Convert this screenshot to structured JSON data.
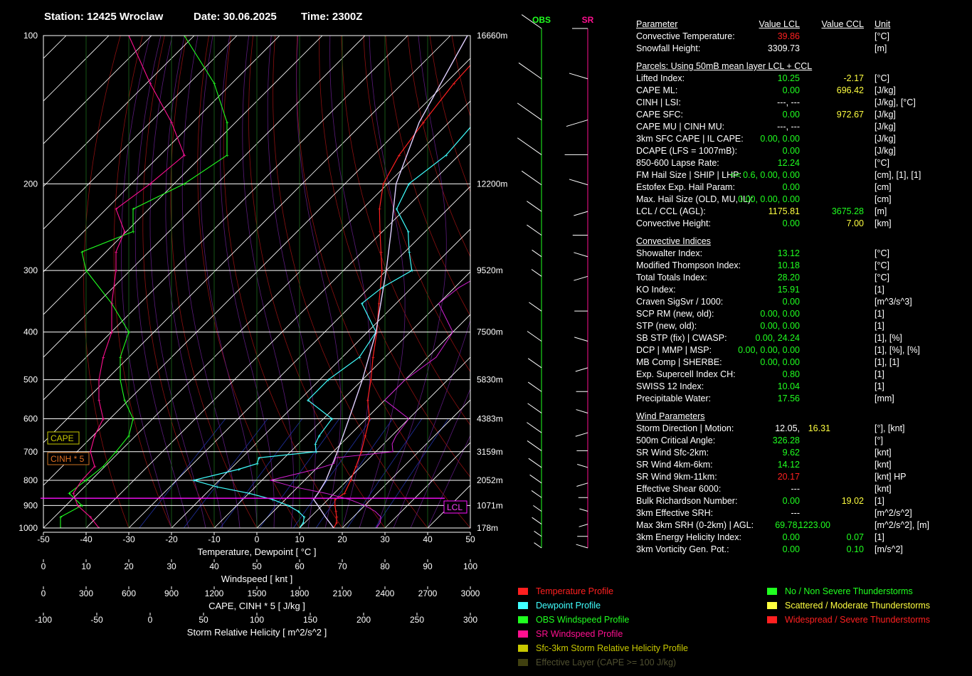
{
  "header": {
    "station": "Station: 12425 Wroclaw",
    "date": "Date: 30.06.2025",
    "time": "Time: 2300Z"
  },
  "hodo_labels": {
    "obs": "OBS",
    "sr": "SR"
  },
  "boxes": {
    "cape": "CAPE",
    "cinh": "CINH * 5",
    "lcl": "LCL"
  },
  "colors": {
    "temperature": "#ff2020",
    "dewpoint": "#40ffff",
    "obs_wind": "#20ff20",
    "sr_wind": "#ff1090",
    "srh": "#c8c800",
    "effective": "#404010",
    "green": "#20ff20",
    "yellow": "#ffff40",
    "red": "#ff2020",
    "grid": "#ffffff"
  },
  "chart_data": {
    "type": "line",
    "title": "",
    "y_scale": "log-pressure",
    "pressure_levels": [
      100,
      200,
      300,
      400,
      500,
      600,
      700,
      800,
      900,
      1000
    ],
    "height_labels": [
      "16660m",
      "12200m",
      "9520m",
      "7500m",
      "5830m",
      "4383m",
      "3159m",
      "2052m",
      "1071m",
      "178m"
    ],
    "axes": [
      {
        "label": "Temperature, Dewpoint  [ °C ]",
        "ticks": [
          "-50",
          "-40",
          "-30",
          "-20",
          "-10",
          "0",
          "10",
          "20",
          "30",
          "40",
          "50"
        ]
      },
      {
        "label": "Windspeed  [ knt ]",
        "ticks": [
          "0",
          "10",
          "20",
          "30",
          "40",
          "50",
          "60",
          "70",
          "80",
          "90",
          "100"
        ]
      },
      {
        "label": "CAPE, CINH * 5  [ J/kg ]",
        "ticks": [
          "0",
          "300",
          "600",
          "900",
          "1200",
          "1500",
          "1800",
          "2100",
          "2400",
          "2700",
          "3000"
        ]
      },
      {
        "label": "Storm Relative Helicity  [ m^2/s^2 ]",
        "ticks": [
          "-100",
          "-50",
          "0",
          "50",
          "100",
          "150",
          "200",
          "250",
          "300"
        ]
      }
    ],
    "xlim": [
      -50,
      50
    ],
    "ylim": [
      1000,
      100
    ],
    "series": [
      {
        "name": "Temperature Profile",
        "points": [
          [
            1000,
            18
          ],
          [
            975,
            17.4
          ],
          [
            950,
            16.1
          ],
          [
            925,
            14.6
          ],
          [
            900,
            13
          ],
          [
            875,
            11.6
          ],
          [
            850,
            12.4
          ],
          [
            800,
            10.8
          ],
          [
            750,
            8.8
          ],
          [
            700,
            6.6
          ],
          [
            650,
            3.8
          ],
          [
            600,
            0.8
          ],
          [
            550,
            -4
          ],
          [
            500,
            -8
          ],
          [
            450,
            -12.8
          ],
          [
            400,
            -17.8
          ],
          [
            350,
            -24
          ],
          [
            300,
            -31
          ],
          [
            275,
            -35.6
          ],
          [
            250,
            -40.6
          ],
          [
            225,
            -46
          ],
          [
            200,
            -51
          ],
          [
            175,
            -54
          ],
          [
            150,
            -56
          ],
          [
            125,
            -58
          ],
          [
            100,
            -59
          ]
        ]
      },
      {
        "name": "Dewpoint Profile",
        "points": [
          [
            1000,
            10
          ],
          [
            975,
            9.6
          ],
          [
            950,
            8.5
          ],
          [
            925,
            5.8
          ],
          [
            900,
            2
          ],
          [
            875,
            -3
          ],
          [
            850,
            -10
          ],
          [
            825,
            -19
          ],
          [
            800,
            -26
          ],
          [
            760,
            -18
          ],
          [
            740,
            -15
          ],
          [
            720,
            -16
          ],
          [
            700,
            -4
          ],
          [
            675,
            -6
          ],
          [
            650,
            -7
          ],
          [
            600,
            -8
          ],
          [
            550,
            -18
          ],
          [
            500,
            -18
          ],
          [
            450,
            -16
          ],
          [
            400,
            -18
          ],
          [
            350,
            -28
          ],
          [
            325,
            -27
          ],
          [
            300,
            -24
          ],
          [
            275,
            -29
          ],
          [
            250,
            -34
          ],
          [
            225,
            -42
          ],
          [
            200,
            -45
          ],
          [
            175,
            -43
          ],
          [
            150,
            -44
          ],
          [
            125,
            -48
          ],
          [
            100,
            -55
          ]
        ]
      },
      {
        "name": "Parcel",
        "points": [
          [
            1000,
            18
          ],
          [
            950,
            13.5
          ],
          [
            900,
            9
          ],
          [
            875,
            6.6
          ],
          [
            850,
            6.2
          ],
          [
            800,
            5
          ],
          [
            700,
            1
          ],
          [
            600,
            -4
          ],
          [
            500,
            -10
          ],
          [
            400,
            -18
          ],
          [
            300,
            -30
          ],
          [
            250,
            -38
          ],
          [
            200,
            -48
          ],
          [
            150,
            -57
          ],
          [
            100,
            -66
          ]
        ]
      }
    ],
    "obs_windspeed_knt": [
      [
        1000,
        4
      ],
      [
        950,
        4
      ],
      [
        900,
        9
      ],
      [
        850,
        6
      ],
      [
        800,
        10
      ],
      [
        750,
        14
      ],
      [
        700,
        17
      ],
      [
        650,
        20
      ],
      [
        600,
        21
      ],
      [
        550,
        19
      ],
      [
        500,
        18
      ],
      [
        450,
        18
      ],
      [
        400,
        20
      ],
      [
        350,
        16
      ],
      [
        300,
        10
      ],
      [
        275,
        9
      ],
      [
        250,
        21
      ],
      [
        225,
        21
      ],
      [
        200,
        33
      ],
      [
        175,
        43
      ],
      [
        150,
        43
      ],
      [
        125,
        40
      ],
      [
        100,
        33
      ]
    ],
    "sr_windspeed_knt": [
      [
        1000,
        13
      ],
      [
        950,
        11
      ],
      [
        900,
        8
      ],
      [
        850,
        7
      ],
      [
        800,
        9
      ],
      [
        750,
        12
      ],
      [
        700,
        11
      ],
      [
        650,
        12
      ],
      [
        600,
        14
      ],
      [
        550,
        13
      ],
      [
        500,
        13
      ],
      [
        450,
        14
      ],
      [
        400,
        16
      ],
      [
        350,
        16
      ],
      [
        300,
        17
      ],
      [
        275,
        17
      ],
      [
        250,
        19
      ],
      [
        225,
        17
      ],
      [
        200,
        25
      ],
      [
        175,
        33
      ],
      [
        150,
        30
      ],
      [
        125,
        25
      ],
      [
        100,
        20
      ]
    ],
    "cape_cinh": {
      "cape_max_jkg": 0,
      "cinh_max_jkg": 0
    }
  },
  "params": [
    {
      "label": "Parameter",
      "v1": "Value LCL",
      "v2": "Value CCL",
      "unit": "Unit",
      "kind": "header"
    },
    {
      "label": "Convective Temperature:",
      "v1": "39.86",
      "v2": "",
      "unit": "[°C]",
      "c1": "red"
    },
    {
      "label": "Snowfall Height:",
      "v1": "3309.73",
      "v2": "",
      "unit": "[m]",
      "c1": "white"
    },
    {
      "label": "Parcels: Using 50mB mean layer LCL + CCL",
      "kind": "section"
    },
    {
      "label": "Lifted Index:",
      "v1": "10.25",
      "v2": "-2.17",
      "unit": "[°C]",
      "c1": "green",
      "c2": "yellow"
    },
    {
      "label": "CAPE ML:",
      "v1": "0.00",
      "v2": "696.42",
      "unit": "[J/kg]",
      "c1": "green",
      "c2": "yellow"
    },
    {
      "label": "CINH | LSI:",
      "v1": "---,  ---",
      "v2": "",
      "unit": "[J/kg], [°C]",
      "c1": "white"
    },
    {
      "label": "CAPE SFC:",
      "v1": "0.00",
      "v2": "972.67",
      "unit": "[J/kg]",
      "c1": "green",
      "c2": "yellow"
    },
    {
      "label": "CAPE MU | CINH MU:",
      "v1": "---,  ---",
      "v2": "",
      "unit": "[J/kg]",
      "c1": "white"
    },
    {
      "label": "3km SFC CAPE | IL CAPE:",
      "v1": "0.00,  0.00",
      "v2": "",
      "unit": "[J/kg]",
      "c1": "green"
    },
    {
      "label": "DCAPE (LFS = 1007mB):",
      "v1": "0.00",
      "v2": "",
      "unit": "[J/kg]",
      "c1": "green"
    },
    {
      "label": "850-600 Lapse Rate:",
      "v1": "12.24",
      "v2": "",
      "unit": "[°C]",
      "c1": "green"
    },
    {
      "label": "FM Hail Size | SHIP | LHP:",
      "v1": "<= 0.6,  0.00,  0.00",
      "v2": "",
      "unit": "[cm], [1], [1]",
      "c1": "green"
    },
    {
      "label": "Estofex Exp. Hail Param:",
      "v1": "0.00",
      "v2": "",
      "unit": "[cm]",
      "c1": "green"
    },
    {
      "label": "Max. Hail Size (OLD, MU, IL):",
      "v1": "0.00,  0.00,  0.00",
      "v2": "",
      "unit": "[cm]",
      "c1": "green"
    },
    {
      "label": "LCL / CCL (AGL):",
      "v1": "1175.81",
      "v2": "3675.28",
      "unit": "[m]",
      "c1": "yellow",
      "c2": "green"
    },
    {
      "label": "Convective Height:",
      "v1": "0.00",
      "v2": "7.00",
      "unit": "[km]",
      "c1": "green",
      "c2": "yellow"
    },
    {
      "label": "Convective Indices",
      "kind": "section"
    },
    {
      "label": "Showalter Index:",
      "v1": "13.12",
      "v2": "",
      "unit": "[°C]",
      "c1": "green"
    },
    {
      "label": "Modified Thompson Index:",
      "v1": "10.18",
      "v2": "",
      "unit": "[°C]",
      "c1": "green"
    },
    {
      "label": "Total Totals Index:",
      "v1": "28.20",
      "v2": "",
      "unit": "[°C]",
      "c1": "green"
    },
    {
      "label": "KO Index:",
      "v1": "15.91",
      "v2": "",
      "unit": "[1]",
      "c1": "green"
    },
    {
      "label": "Craven SigSvr / 1000:",
      "v1": "0.00",
      "v2": "",
      "unit": "[m^3/s^3]",
      "c1": "green"
    },
    {
      "label": "SCP RM (new, old):",
      "v1": "0.00,  0.00",
      "v2": "",
      "unit": "[1]",
      "c1": "green"
    },
    {
      "label": "STP (new, old):",
      "v1": "0.00,  0.00",
      "v2": "",
      "unit": "[1]",
      "c1": "green"
    },
    {
      "label": "SB STP (fix) | CWASP:",
      "v1": "0.00,  24.24",
      "v2": "",
      "unit": "[1], [%]",
      "c1": "green"
    },
    {
      "label": "DCP | MMP | MSP:",
      "v1": "0.00,  0.00,  0.00",
      "v2": "",
      "unit": "[1], [%], [%]",
      "c1": "green"
    },
    {
      "label": "MB Comp | SHERBE:",
      "v1": "0.00,  0.00",
      "v2": "",
      "unit": "[1], [1]",
      "c1": "green"
    },
    {
      "label": "Exp. Supercell Index CH:",
      "v1": "0.80",
      "v2": "",
      "unit": "[1]",
      "c1": "green"
    },
    {
      "label": "SWISS 12 Index:",
      "v1": "10.04",
      "v2": "",
      "unit": "[1]",
      "c1": "green"
    },
    {
      "label": "Precipitable Water:",
      "v1": "17.56",
      "v2": "",
      "unit": "[mm]",
      "c1": "green"
    },
    {
      "label": "Wind Parameters",
      "kind": "section"
    },
    {
      "label": "Storm Direction | Motion:",
      "v1": "12.05,",
      "v1b": "16.31",
      "v2": "",
      "unit": "[°], [knt]",
      "c1": "white",
      "c1b": "yellow"
    },
    {
      "label": "500m Critical Angle:",
      "v1": "326.28",
      "v2": "",
      "unit": "[°]",
      "c1": "green"
    },
    {
      "label": "SR Wind Sfc-2km:",
      "v1": "9.62",
      "v2": "",
      "unit": "[knt]",
      "c1": "green"
    },
    {
      "label": "SR Wind 4km-6km:",
      "v1": "14.12",
      "v2": "",
      "unit": "[knt]",
      "c1": "green"
    },
    {
      "label": "SR Wind 9km-11km:",
      "v1": "20.17",
      "v2": "",
      "unit": "[knt] HP",
      "c1": "red"
    },
    {
      "label": "Effective Shear 6000:",
      "v1": "---",
      "v2": "",
      "unit": "[knt]",
      "c1": "white"
    },
    {
      "label": "Bulk Richardson Number:",
      "v1": "0.00",
      "v2": "19.02",
      "unit": "[1]",
      "c1": "green",
      "c2": "yellow"
    },
    {
      "label": "3km Effective SRH:",
      "v1": "---",
      "v2": "",
      "unit": "[m^2/s^2]",
      "c1": "white"
    },
    {
      "label": "Max 3km SRH (0-2km) | AGL:",
      "v1": "69.78,",
      "v1b": "1223.00",
      "v2": "",
      "unit": "[m^2/s^2], [m]",
      "c1": "green",
      "c1b": "green"
    },
    {
      "label": "3km Energy Helicity Index:",
      "v1": "0.00",
      "v2": "0.07",
      "unit": "[1]",
      "c1": "green",
      "c2": "green"
    },
    {
      "label": "3km Vorticity Gen. Pot.:",
      "v1": "0.00",
      "v2": "0.10",
      "unit": "[m/s^2]",
      "c1": "green",
      "c2": "green"
    }
  ],
  "legend": [
    {
      "text": "Temperature Profile",
      "color": "#ff2020",
      "text_color": "#ff2020"
    },
    {
      "text": "Dewpoint Profile",
      "color": "#40ffff",
      "text_color": "#40ffff"
    },
    {
      "text": "OBS Windspeed Profile",
      "color": "#20ff20",
      "text_color": "#20ff20"
    },
    {
      "text": "SR Windspeed Profile",
      "color": "#ff1090",
      "text_color": "#ff1090"
    },
    {
      "text": "Sfc-3km Storm Relative Helicity Profile",
      "color": "#c8c800",
      "text_color": "#c8c800"
    },
    {
      "text": "Effective Layer (CAPE >= 100 J/kg)",
      "color": "#404010",
      "text_color": "#505030"
    },
    {
      "text": "No / Non Severe Thunderstorms",
      "color": "#20ff20",
      "text_color": "#20ff20"
    },
    {
      "text": "Scattered / Moderate Thunderstorms",
      "color": "#ffff40",
      "text_color": "#ffff40"
    },
    {
      "text": "Widespread / Severe Thunderstorms",
      "color": "#ff2020",
      "text_color": "#ff2020"
    }
  ]
}
